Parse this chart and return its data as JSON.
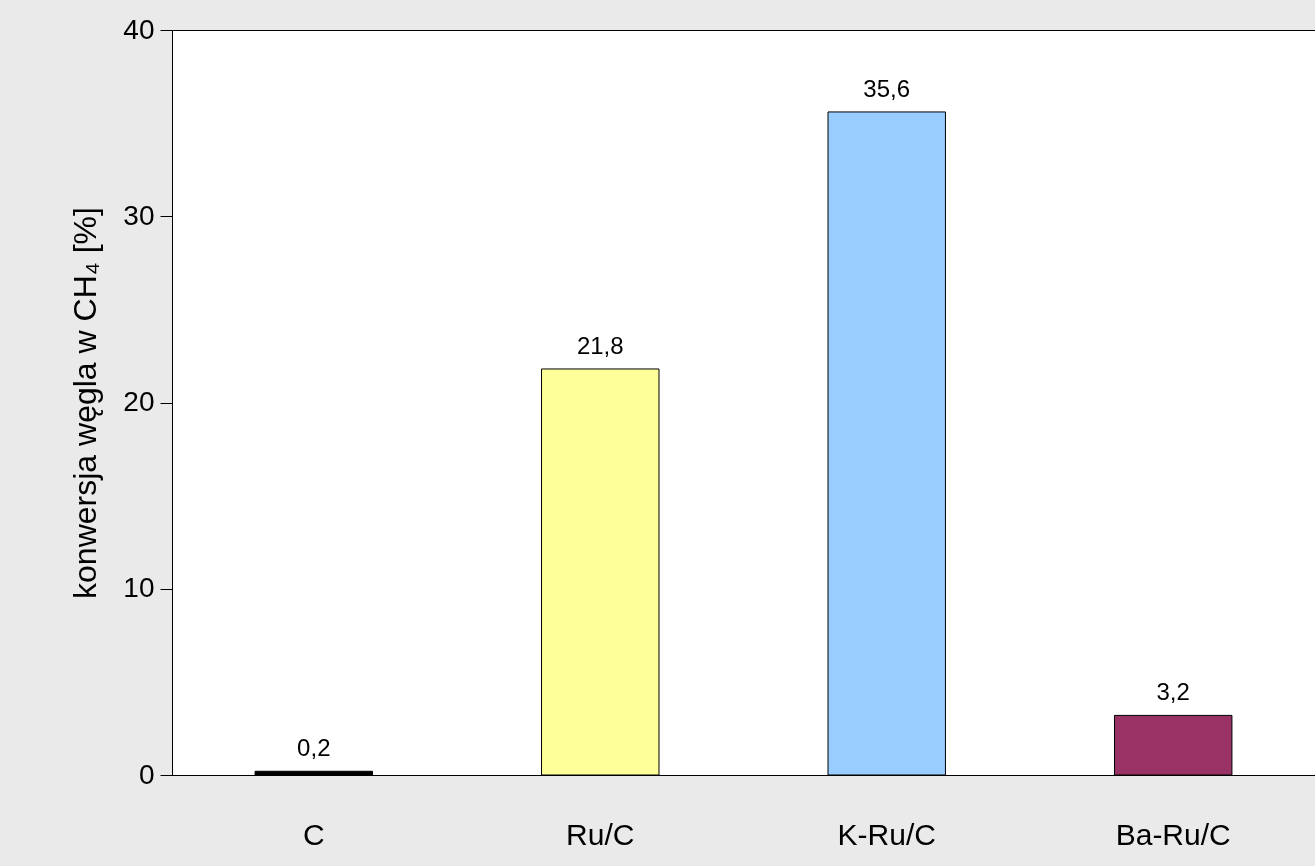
{
  "chart_data": {
    "type": "bar",
    "ylabel": "konwersja węgla w CH₄ [%]",
    "categories": [
      "C",
      "Ru/C",
      "K-Ru/C",
      "Ba-Ru/C"
    ],
    "values": [
      0.2,
      21.8,
      35.6,
      3.2
    ],
    "colors": [
      "#000000",
      "#ffff99",
      "#99ccff",
      "#993366"
    ],
    "value_labels": [
      "0,2",
      "21,8",
      "35,6",
      "3,2"
    ],
    "ylim": [
      0,
      40
    ],
    "yticks": [
      0,
      10,
      20,
      30,
      40
    ],
    "grid": false
  }
}
